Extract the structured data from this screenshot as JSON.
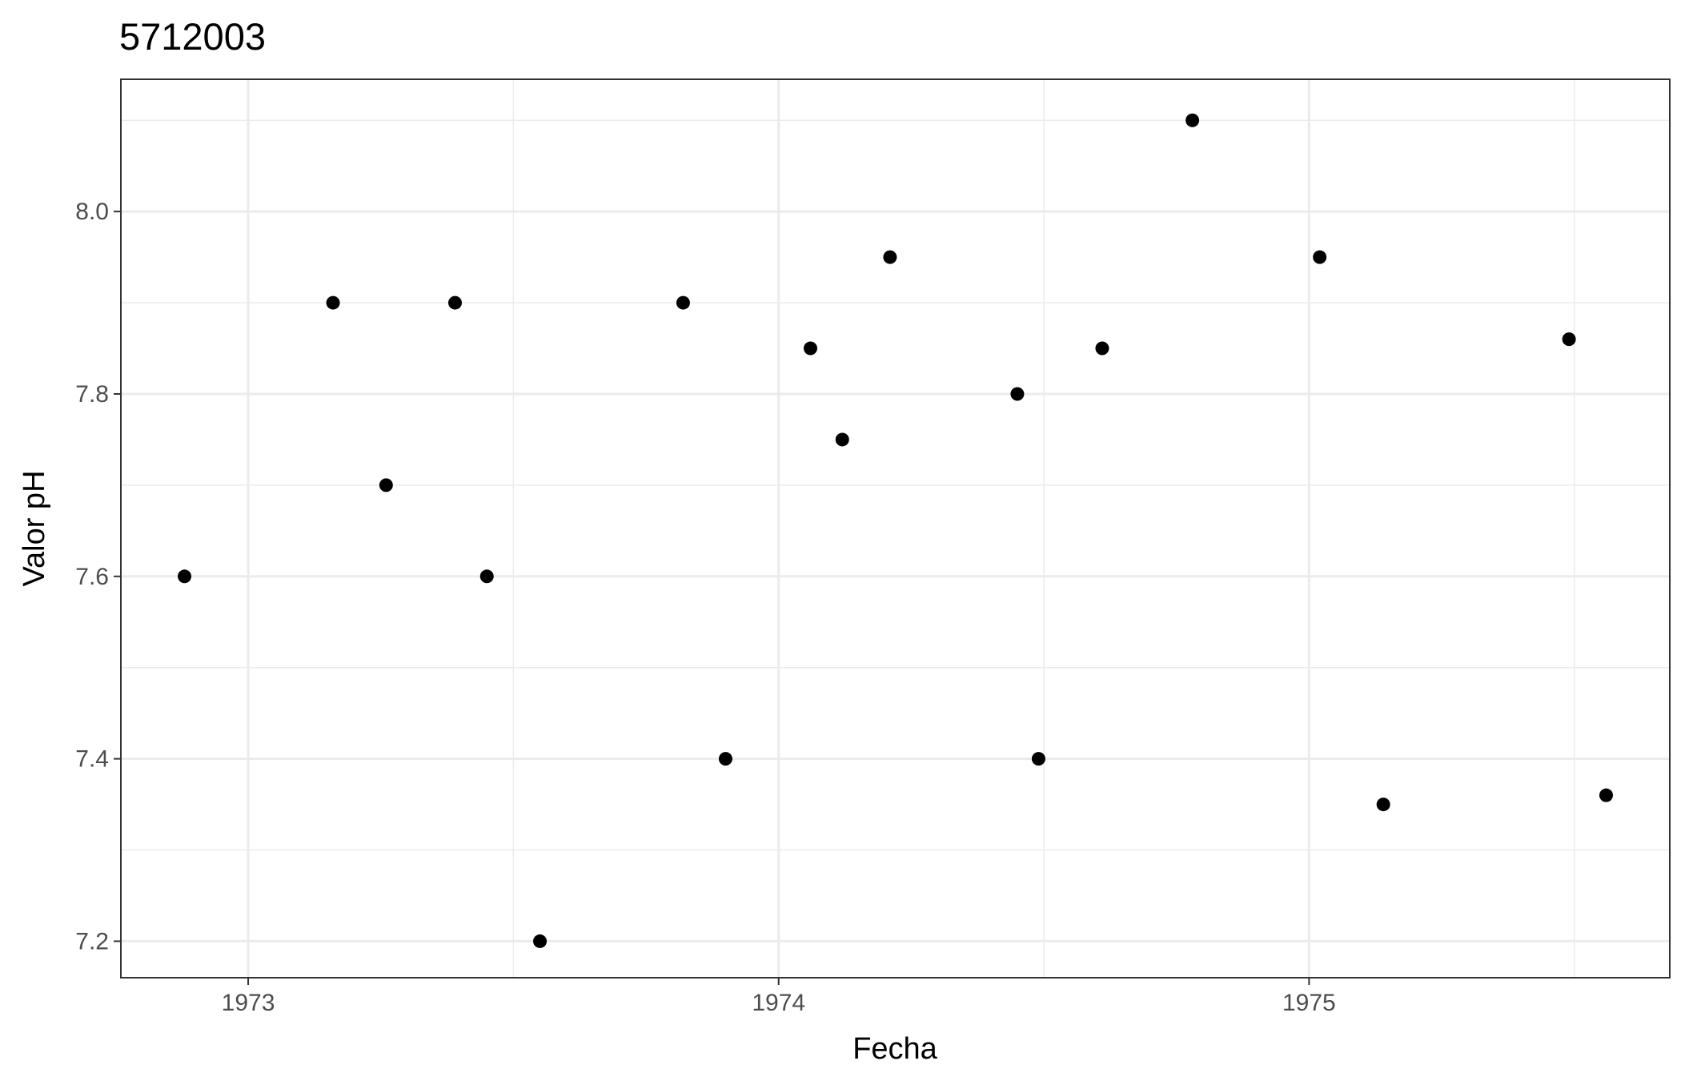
{
  "chart_data": {
    "type": "scatter",
    "title": "5712003",
    "xlabel": "Fecha",
    "ylabel": "Valor pH",
    "x_tick_labels": [
      "1973",
      "1974",
      "1975"
    ],
    "y_tick_labels": [
      "7.2",
      "7.4",
      "7.6",
      "7.8",
      "8.0"
    ],
    "x_major_ticks": [
      1973,
      1974,
      1975
    ],
    "x_minor_gridlines": [
      1973.5,
      1974.5,
      1975.5
    ],
    "y_major_ticks": [
      7.2,
      7.4,
      7.6,
      7.8,
      8.0
    ],
    "y_minor_gridlines": [
      7.3,
      7.5,
      7.7,
      7.9,
      8.1
    ],
    "xlim": [
      1972.76,
      1975.68
    ],
    "ylim": [
      7.16,
      8.145
    ],
    "grid": true,
    "theme": "black-and-white",
    "point_color": "#000000",
    "grid_color": "#ebebeb",
    "points": [
      {
        "date": "1972-11-16",
        "x": 1972.88,
        "y": 7.6
      },
      {
        "date": "1973-03-06",
        "x": 1973.16,
        "y": 7.9
      },
      {
        "date": "1973-04-11",
        "x": 1973.26,
        "y": 7.7
      },
      {
        "date": "1973-05-30",
        "x": 1973.39,
        "y": 7.9
      },
      {
        "date": "1973-06-21",
        "x": 1973.45,
        "y": 7.6
      },
      {
        "date": "1973-07-27",
        "x": 1973.55,
        "y": 7.2
      },
      {
        "date": "1973-10-31",
        "x": 1973.82,
        "y": 7.9
      },
      {
        "date": "1973-11-24",
        "x": 1973.9,
        "y": 7.4
      },
      {
        "date": "1974-01-22",
        "x": 1974.06,
        "y": 7.85
      },
      {
        "date": "1974-02-15",
        "x": 1974.12,
        "y": 7.75
      },
      {
        "date": "1974-03-17",
        "x": 1974.21,
        "y": 7.95
      },
      {
        "date": "1974-06-15",
        "x": 1974.45,
        "y": 7.8
      },
      {
        "date": "1974-06-30",
        "x": 1974.49,
        "y": 7.4
      },
      {
        "date": "1974-08-10",
        "x": 1974.61,
        "y": 7.85
      },
      {
        "date": "1974-10-11",
        "x": 1974.78,
        "y": 8.1
      },
      {
        "date": "1975-01-09",
        "x": 1975.02,
        "y": 7.95
      },
      {
        "date": "1975-02-22",
        "x": 1975.14,
        "y": 7.35
      },
      {
        "date": "1975-06-29",
        "x": 1975.49,
        "y": 7.86
      },
      {
        "date": "1975-07-27",
        "x": 1975.56,
        "y": 7.36
      }
    ]
  }
}
